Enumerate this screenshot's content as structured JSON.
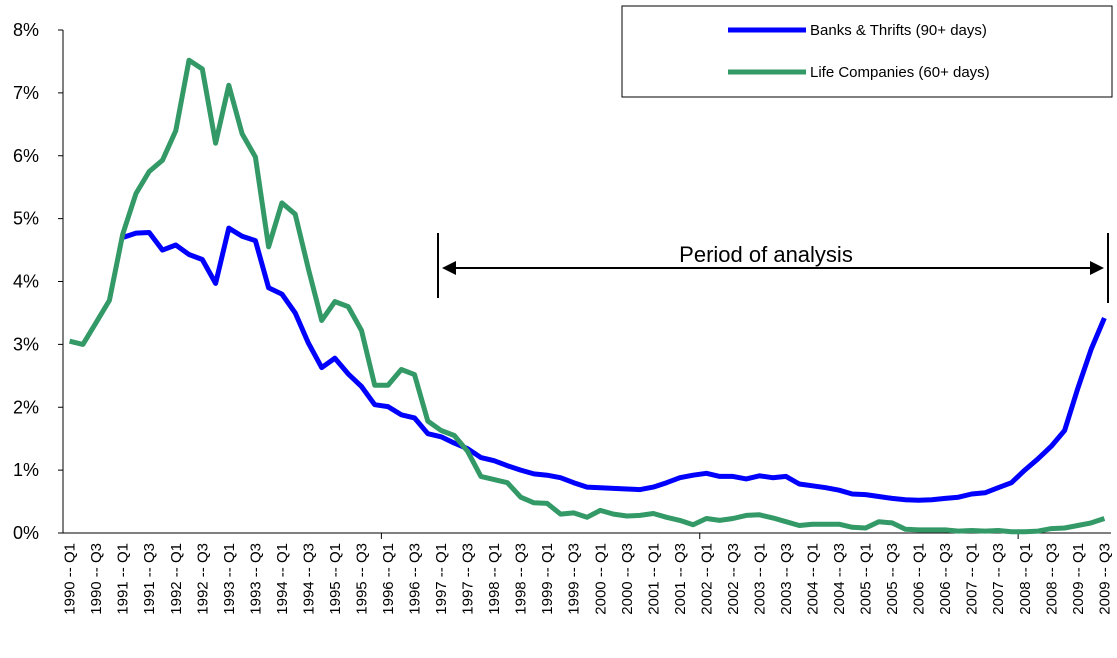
{
  "chart_data": {
    "type": "line",
    "categories": [
      "1990 -- Q1",
      null,
      "1990 -- Q3",
      null,
      "1991 -- Q1",
      null,
      "1991 -- Q3",
      null,
      "1992 -- Q1",
      null,
      "1992 -- Q3",
      null,
      "1993 -- Q1",
      null,
      "1993 -- Q3",
      null,
      "1994 -- Q1",
      null,
      "1994 -- Q3",
      null,
      "1995 -- Q1",
      null,
      "1995 -- Q3",
      null,
      "1996 -- Q1",
      null,
      "1996 -- Q3",
      null,
      "1997 -- Q1",
      null,
      "1997 -- Q3",
      null,
      "1998 -- Q1",
      null,
      "1998 -- Q3",
      null,
      "1999 -- Q1",
      null,
      "1999 -- Q3",
      null,
      "2000 -- Q1",
      null,
      "2000 -- Q3",
      null,
      "2001 -- Q1",
      null,
      "2001 -- Q3",
      null,
      "2002 -- Q1",
      null,
      "2002 -- Q3",
      null,
      "2003 -- Q1",
      null,
      "2003 -- Q3",
      null,
      "2004 -- Q1",
      null,
      "2004 -- Q3",
      null,
      "2005 -- Q1",
      null,
      "2005 -- Q3",
      null,
      "2006 -- Q1",
      null,
      "2006 -- Q3",
      null,
      "2007 -- Q1",
      null,
      "2007 -- Q3",
      null,
      "2008 -- Q1",
      null,
      "2008 -- Q3",
      null,
      "2009 -- Q1",
      null,
      "2009 -- Q3"
    ],
    "series": [
      {
        "name": "Banks & Thrifts (90+ days)",
        "color": "#0000ff",
        "values": [
          null,
          null,
          null,
          null,
          4.7,
          4.77,
          4.78,
          4.5,
          4.58,
          4.43,
          4.35,
          3.97,
          4.85,
          4.72,
          4.65,
          3.9,
          3.8,
          3.5,
          3.02,
          2.63,
          2.78,
          2.53,
          2.33,
          2.04,
          2.01,
          1.88,
          1.83,
          1.58,
          1.53,
          1.43,
          1.34,
          1.2,
          1.15,
          1.07,
          1.0,
          0.94,
          0.92,
          0.88,
          0.8,
          0.73,
          0.72,
          0.71,
          0.7,
          0.69,
          0.73,
          0.8,
          0.88,
          0.92,
          0.95,
          0.9,
          0.9,
          0.86,
          0.91,
          0.88,
          0.9,
          0.78,
          0.75,
          0.72,
          0.68,
          0.62,
          0.61,
          0.58,
          0.55,
          0.53,
          0.52,
          0.53,
          0.55,
          0.57,
          0.62,
          0.64,
          0.72,
          0.8,
          1.0,
          1.18,
          1.38,
          1.63,
          2.3,
          2.92,
          3.42
        ]
      },
      {
        "name": "Life Companies (60+ days)",
        "color": "#339966",
        "values": [
          3.05,
          3.0,
          3.35,
          3.7,
          4.75,
          5.4,
          5.75,
          5.93,
          6.4,
          7.52,
          7.38,
          6.2,
          7.12,
          6.35,
          5.98,
          4.55,
          5.25,
          5.07,
          4.2,
          3.38,
          3.68,
          3.6,
          3.22,
          2.35,
          2.35,
          2.6,
          2.52,
          1.78,
          1.63,
          1.55,
          1.3,
          0.9,
          0.85,
          0.8,
          0.57,
          0.48,
          0.47,
          0.3,
          0.32,
          0.25,
          0.36,
          0.3,
          0.27,
          0.28,
          0.31,
          0.25,
          0.2,
          0.13,
          0.23,
          0.2,
          0.23,
          0.28,
          0.29,
          0.24,
          0.18,
          0.12,
          0.14,
          0.14,
          0.14,
          0.09,
          0.08,
          0.18,
          0.16,
          0.06,
          0.05,
          0.05,
          0.05,
          0.03,
          0.04,
          0.03,
          0.04,
          0.02,
          0.02,
          0.03,
          0.07,
          0.08,
          0.12,
          0.16,
          0.23
        ]
      }
    ],
    "ylim": [
      0,
      8
    ],
    "yticks": [
      {
        "value": 0,
        "label": "0%"
      },
      {
        "value": 1,
        "label": "1%"
      },
      {
        "value": 2,
        "label": "2%"
      },
      {
        "value": 3,
        "label": "3%"
      },
      {
        "value": 4,
        "label": "4%"
      },
      {
        "value": 5,
        "label": "5%"
      },
      {
        "value": 6,
        "label": "6%"
      },
      {
        "value": 7,
        "label": "7%"
      },
      {
        "value": 8,
        "label": "8%"
      }
    ],
    "annotation": "Period of analysis",
    "legend": "top-right",
    "grid": false
  }
}
